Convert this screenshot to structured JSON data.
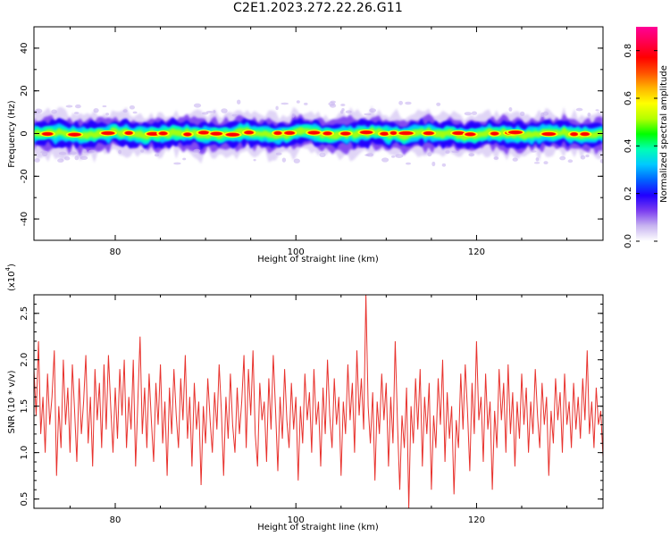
{
  "figure": {
    "title": "C2E1.2023.272.22.26.G11"
  },
  "colorbar": {
    "label": "Normalized spectral amplitude",
    "ticks": [
      "0.0",
      "0.2",
      "0.4",
      "0.6",
      "0.8"
    ],
    "tick_values": [
      0.0,
      0.2,
      0.4,
      0.6,
      0.8
    ],
    "range": [
      0,
      0.9
    ],
    "colormap": [
      "#ffffff",
      "#c8b4f0",
      "#7a3cf0",
      "#2000ff",
      "#0064ff",
      "#00c8ff",
      "#00ffb4",
      "#00ff00",
      "#b4ff00",
      "#ffff00",
      "#ffb400",
      "#ff5000",
      "#ff0000",
      "#ff0050",
      "#ff0096"
    ]
  },
  "chart_data": [
    {
      "type": "heatmap",
      "title": "C2E1.2023.272.22.26.G11",
      "xlabel": "Height of straight line (km)",
      "ylabel": "Frequency (Hz)",
      "xlim": [
        71,
        134
      ],
      "ylim": [
        -50,
        50
      ],
      "xticks": [
        "80",
        "100",
        "120"
      ],
      "xtick_values": [
        80,
        100,
        120
      ],
      "yticks": [
        "40",
        "20",
        "0",
        "-20",
        "-40"
      ],
      "ytick_values": [
        40,
        20,
        0,
        -20,
        -40
      ],
      "band_center_hz": 0,
      "band_halfwidth_hz": 5,
      "hot_spots_km": [
        72.5,
        75.5,
        79.2,
        81.5,
        84.2,
        85.3,
        88,
        89.8,
        91.2,
        93,
        94.8,
        98,
        99.3,
        102,
        103.5,
        105.5,
        107.8,
        109.8,
        110.8,
        112.2,
        114.7,
        118,
        119.3,
        122,
        123.8,
        124.3,
        128,
        130.8,
        132
      ],
      "grid": false
    },
    {
      "type": "line",
      "xlabel": "Height of straight line (km)",
      "ylabel": "SNR (10 * v/v)",
      "y_multiplier_label": "(x10",
      "y_multiplier_exp": "4",
      "xlim": [
        71,
        134
      ],
      "ylim": [
        0.4,
        2.7
      ],
      "xticks": [
        "80",
        "100",
        "120"
      ],
      "xtick_values": [
        80,
        100,
        120
      ],
      "yticks": [
        "0.5",
        "1.0",
        "1.5",
        "2.0",
        "2.5"
      ],
      "ytick_values": [
        0.5,
        1.0,
        1.5,
        2.0,
        2.5
      ],
      "series": [
        {
          "color": "#e8322d",
          "x": [
            71,
            71.25,
            71.5,
            71.75,
            72,
            72.25,
            72.5,
            72.75,
            73,
            73.25,
            73.5,
            73.75,
            74,
            74.25,
            74.5,
            74.75,
            75,
            75.25,
            75.5,
            75.75,
            76,
            76.25,
            76.5,
            76.75,
            77,
            77.25,
            77.5,
            77.75,
            78,
            78.25,
            78.5,
            78.75,
            79,
            79.25,
            79.5,
            79.75,
            80,
            80.25,
            80.5,
            80.75,
            81,
            81.25,
            81.5,
            81.75,
            82,
            82.25,
            82.5,
            82.75,
            83,
            83.25,
            83.5,
            83.75,
            84,
            84.25,
            84.5,
            84.75,
            85,
            85.25,
            85.5,
            85.75,
            86,
            86.25,
            86.5,
            86.75,
            87,
            87.25,
            87.5,
            87.75,
            88,
            88.25,
            88.5,
            88.75,
            89,
            89.25,
            89.5,
            89.75,
            90,
            90.25,
            90.5,
            90.75,
            91,
            91.25,
            91.5,
            91.75,
            92,
            92.25,
            92.5,
            92.75,
            93,
            93.25,
            93.5,
            93.75,
            94,
            94.25,
            94.5,
            94.75,
            95,
            95.25,
            95.5,
            95.75,
            96,
            96.25,
            96.5,
            96.75,
            97,
            97.25,
            97.5,
            97.75,
            98,
            98.25,
            98.5,
            98.75,
            99,
            99.25,
            99.5,
            99.75,
            100,
            100.25,
            100.5,
            100.75,
            101,
            101.25,
            101.5,
            101.75,
            102,
            102.25,
            102.5,
            102.75,
            103,
            103.25,
            103.5,
            103.75,
            104,
            104.25,
            104.5,
            104.75,
            105,
            105.25,
            105.5,
            105.75,
            106,
            106.25,
            106.5,
            106.75,
            107,
            107.25,
            107.5,
            107.75,
            108,
            108.25,
            108.5,
            108.75,
            109,
            109.25,
            109.5,
            109.75,
            110,
            110.25,
            110.5,
            110.75,
            111,
            111.25,
            111.5,
            111.75,
            112,
            112.25,
            112.5,
            112.75,
            113,
            113.25,
            113.5,
            113.75,
            114,
            114.25,
            114.5,
            114.75,
            115,
            115.25,
            115.5,
            115.75,
            116,
            116.25,
            116.5,
            116.75,
            117,
            117.25,
            117.5,
            117.75,
            118,
            118.25,
            118.5,
            118.75,
            119,
            119.25,
            119.5,
            119.75,
            120,
            120.25,
            120.5,
            120.75,
            121,
            121.25,
            121.5,
            121.75,
            122,
            122.25,
            122.5,
            122.75,
            123,
            123.25,
            123.5,
            123.75,
            124,
            124.25,
            124.5,
            124.75,
            125,
            125.25,
            125.5,
            125.75,
            126,
            126.25,
            126.5,
            126.75,
            127,
            127.25,
            127.5,
            127.75,
            128,
            128.25,
            128.5,
            128.75,
            129,
            129.25,
            129.5,
            129.75,
            130,
            130.25,
            130.5,
            130.75,
            131,
            131.25,
            131.5,
            131.75,
            132,
            132.25,
            132.5,
            132.75,
            133,
            133.25,
            133.5,
            133.75,
            134
          ],
          "y": [
            1.9,
            1.4,
            2.2,
            1.2,
            1.6,
            1.0,
            1.85,
            1.3,
            1.6,
            2.1,
            0.75,
            1.5,
            1.05,
            2.0,
            1.3,
            1.7,
            1.0,
            1.95,
            1.45,
            0.9,
            1.8,
            1.2,
            1.55,
            2.05,
            1.1,
            1.6,
            0.85,
            1.9,
            1.35,
            1.75,
            1.05,
            1.95,
            1.25,
            2.05,
            1.5,
            1.0,
            1.7,
            1.15,
            1.9,
            1.4,
            2.0,
            1.05,
            1.6,
            1.25,
            2.0,
            0.85,
            1.55,
            2.25,
            1.2,
            1.7,
            1.05,
            1.85,
            1.35,
            0.9,
            1.75,
            1.3,
            1.95,
            1.1,
            1.55,
            0.75,
            1.7,
            1.2,
            1.9,
            1.4,
            1.05,
            1.8,
            1.35,
            2.05,
            1.15,
            1.6,
            0.85,
            1.75,
            1.25,
            1.55,
            0.65,
            1.5,
            1.1,
            1.8,
            1.35,
            1.0,
            1.65,
            1.25,
            1.95,
            1.45,
            0.75,
            1.6,
            1.15,
            1.85,
            1.3,
            1.0,
            1.7,
            1.2,
            1.55,
            2.05,
            1.05,
            1.9,
            1.4,
            2.1,
            1.2,
            0.85,
            1.75,
            1.35,
            1.55,
            0.9,
            1.8,
            1.25,
            2.05,
            1.45,
            0.8,
            1.6,
            1.15,
            1.9,
            1.35,
            1.05,
            1.75,
            1.25,
            1.6,
            0.7,
            1.5,
            1.1,
            1.85,
            1.35,
            1.65,
            1.0,
            1.9,
            1.3,
            1.55,
            0.85,
            1.7,
            1.2,
            2.0,
            1.4,
            1.05,
            1.8,
            1.3,
            1.6,
            0.75,
            1.55,
            1.2,
            1.95,
            1.35,
            1.75,
            1.0,
            2.1,
            1.4,
            1.8,
            1.25,
            2.7,
            1.5,
            1.1,
            1.65,
            0.7,
            1.55,
            1.2,
            1.85,
            1.35,
            1.75,
            0.85,
            1.6,
            1.1,
            2.2,
            1.3,
            0.6,
            1.4,
            1.05,
            1.7,
            0.4,
            1.5,
            1.1,
            1.8,
            1.25,
            1.9,
            0.85,
            1.6,
            1.2,
            1.75,
            0.6,
            1.4,
            1.05,
            1.8,
            1.3,
            2.0,
            0.9,
            1.65,
            1.15,
            1.5,
            0.55,
            1.35,
            1.05,
            1.85,
            1.25,
            1.95,
            1.45,
            0.8,
            1.75,
            1.2,
            2.2,
            1.35,
            1.6,
            0.9,
            1.85,
            1.25,
            1.55,
            0.6,
            1.45,
            1.05,
            1.9,
            1.35,
            1.75,
            1.0,
            1.95,
            1.2,
            1.65,
            0.85,
            1.55,
            1.15,
            1.85,
            1.3,
            1.7,
            1.0,
            1.55,
            1.2,
            1.9,
            1.4,
            1.05,
            1.75,
            1.3,
            1.6,
            0.75,
            1.45,
            1.1,
            1.8,
            1.35,
            1.65,
            1.0,
            1.85,
            1.3,
            1.55,
            1.05,
            1.75,
            1.25,
            1.6,
            1.15,
            1.8,
            1.35,
            2.1,
            1.2,
            1.55,
            1.05,
            1.7,
            1.3,
            1.45,
            0.95
          ]
        }
      ],
      "grid": false
    }
  ]
}
